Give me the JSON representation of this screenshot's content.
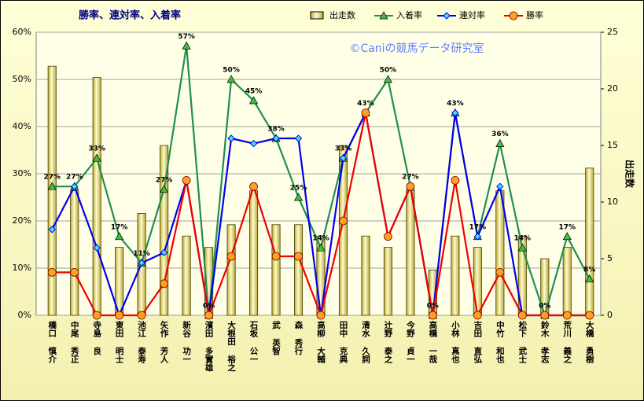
{
  "chart_data": {
    "type": "bar-line",
    "title": "勝率、連対率、入着率",
    "watermark": "©Caniの競馬データ研究室",
    "y2label": "出走数",
    "categories": [
      "橋口 慎介",
      "中尾 秀正",
      "寺島 良",
      "東田 明士",
      "池江 泰寿",
      "矢作 芳人",
      "新谷 功一",
      "濱田 多實雄",
      "大根田 裕之",
      "石坂 公一",
      "武 英智",
      "森 秀行",
      "高柳 大輔",
      "田中 克典",
      "清水 久詞",
      "辻野 泰之",
      "今野 貞一",
      "高橋 一哉",
      "小林 真也",
      "吉田 直弘",
      "中竹 和也",
      "松下 武士",
      "鈴木 孝志",
      "荒川 義之",
      "大橋 勇樹"
    ],
    "series": [
      {
        "name": "出走数",
        "kind": "bar",
        "axis": "y2",
        "color": "#e8e070",
        "values": [
          22,
          11,
          21,
          6,
          9,
          15,
          7,
          6,
          8,
          11,
          8,
          8,
          7,
          15,
          7,
          6,
          11,
          4,
          7,
          6,
          11,
          7,
          5,
          6,
          13
        ]
      },
      {
        "name": "入着率",
        "kind": "line",
        "marker": "triangle",
        "color": "#1f8f4f",
        "values": [
          27.3,
          27.3,
          33.3,
          16.7,
          11.1,
          26.7,
          57.1,
          0,
          50,
          45.5,
          37.5,
          25,
          14.3,
          33.3,
          42.9,
          50,
          27.3,
          0,
          42.9,
          16.7,
          36.4,
          14.3,
          0,
          16.7,
          7.7
        ],
        "value_labels": [
          "27%",
          "27%",
          "33%",
          "17%",
          "11%",
          "27%",
          "57%",
          "0%",
          "50%",
          "45%",
          "38%",
          "25%",
          "14%",
          "33%",
          "43%",
          "50%",
          "27%",
          "0%",
          "43%",
          "17%",
          "36%",
          "14%",
          "0%",
          "17%",
          "8%"
        ]
      },
      {
        "name": "連対率",
        "kind": "line",
        "marker": "diamond",
        "color": "#0000ee",
        "values": [
          18.2,
          27.3,
          14.3,
          0,
          11.1,
          13.3,
          28.6,
          0,
          37.5,
          36.4,
          37.5,
          37.5,
          0,
          33.3,
          42.9,
          16.7,
          27.3,
          0,
          42.9,
          16.7,
          27.3,
          0,
          0,
          0,
          0
        ]
      },
      {
        "name": "勝率",
        "kind": "line",
        "marker": "circle",
        "color": "#ee0000",
        "values": [
          9.1,
          9.1,
          0,
          0,
          0,
          6.7,
          28.6,
          0,
          12.5,
          27.3,
          12.5,
          12.5,
          0,
          20,
          42.9,
          16.7,
          27.3,
          0,
          28.6,
          0,
          9.1,
          0,
          0,
          0,
          0
        ]
      }
    ],
    "ylim": [
      0,
      60
    ],
    "yticks": [
      {
        "value": 0,
        "label": "0%"
      },
      {
        "value": 10,
        "label": "10%"
      },
      {
        "value": 20,
        "label": "20%"
      },
      {
        "value": 30,
        "label": "30%"
      },
      {
        "value": 40,
        "label": "40%"
      },
      {
        "value": 50,
        "label": "50%"
      },
      {
        "value": 60,
        "label": "60%"
      }
    ],
    "y2lim": [
      0,
      25
    ],
    "y2ticks": [
      0,
      5,
      10,
      15,
      20,
      25
    ],
    "grid": true
  }
}
